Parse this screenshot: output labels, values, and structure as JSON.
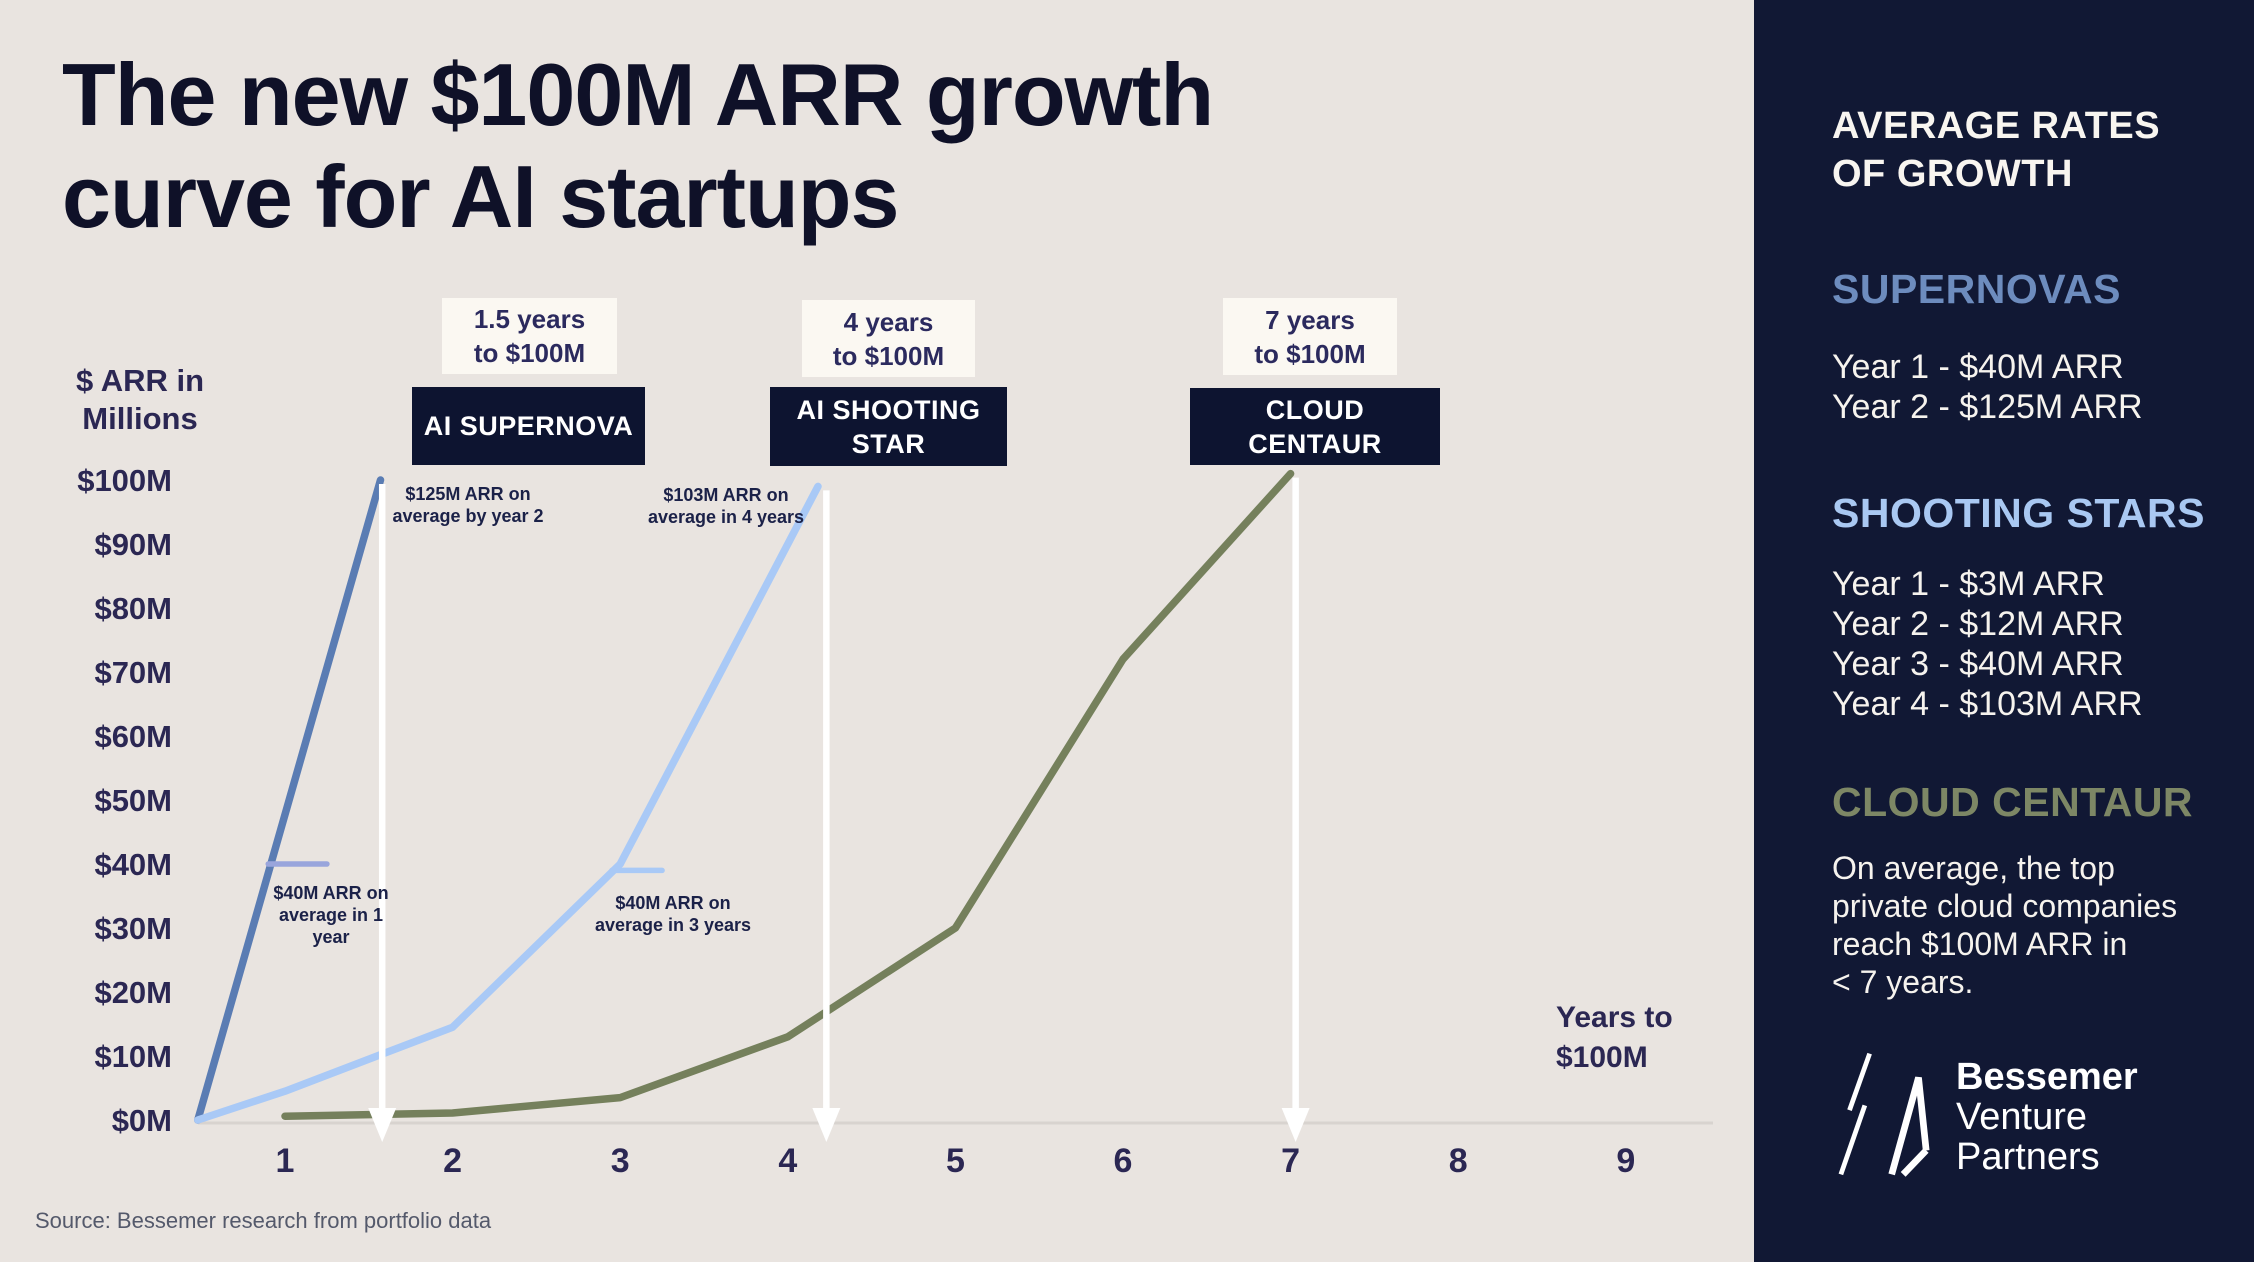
{
  "title": "The new $100M ARR growth\ncurve for AI startups",
  "source": "Source: Bessemer research from portfolio data",
  "axis": {
    "y_title": "$ ARR in\nMillions",
    "x_title": "Years to\n$100M"
  },
  "colors": {
    "background": "#e9e4e0",
    "panel_navy": "#111834",
    "box_navy": "#0d1430",
    "box_cream": "#fbf8f2",
    "arrow_white": "#ffffff"
  },
  "chart_data": {
    "type": "line",
    "title": "The new $100M ARR growth curve for AI startups",
    "xlabel": "Years to $100M",
    "ylabel": "$ ARR in Millions",
    "x_ticks": [
      1,
      2,
      3,
      4,
      5,
      6,
      7,
      8,
      9
    ],
    "xlim": [
      0.4,
      9.5
    ],
    "ylim": [
      0,
      105
    ],
    "grid": false,
    "y_ticks": [
      {
        "label": "$100M",
        "value": 100
      },
      {
        "label": "$90M",
        "value": 90
      },
      {
        "label": "$80M",
        "value": 80
      },
      {
        "label": "$70M",
        "value": 70
      },
      {
        "label": "$60M",
        "value": 60
      },
      {
        "label": "$50M",
        "value": 50
      },
      {
        "label": "$40M",
        "value": 40
      },
      {
        "label": "$30M",
        "value": 30
      },
      {
        "label": "$20M",
        "value": 20
      },
      {
        "label": "$10M",
        "value": 10
      },
      {
        "label": "$0M",
        "value": 0
      }
    ],
    "series": [
      {
        "name": "AI Supernova",
        "color": "#5a7cb3",
        "points": [
          [
            0.48,
            0
          ],
          [
            1.57,
            100
          ]
        ],
        "milestones": {
          "year_1_arr_m": 40,
          "year_2_arr_m": 125,
          "years_to_100m": 1.5
        }
      },
      {
        "name": "AI Shooting Star",
        "color": "#a9c9f6",
        "points": [
          [
            0.48,
            0
          ],
          [
            1,
            4.5
          ],
          [
            2,
            14.5
          ],
          [
            3,
            40
          ],
          [
            4.18,
            99
          ]
        ],
        "milestones": {
          "year_1_arr_m": 3,
          "year_2_arr_m": 12,
          "year_3_arr_m": 40,
          "year_4_arr_m": 103,
          "years_to_100m": 4
        }
      },
      {
        "name": "Cloud Centaur",
        "color": "#75805c",
        "points": [
          [
            1,
            0.6
          ],
          [
            2,
            1.1
          ],
          [
            3,
            3.5
          ],
          [
            4,
            13
          ],
          [
            5,
            30
          ],
          [
            6,
            72
          ],
          [
            7,
            101
          ]
        ],
        "milestones": {
          "years_to_100m": 7
        }
      }
    ],
    "milestone_ticks": [
      {
        "series": "AI Supernova",
        "value": 40,
        "from_year": 0.9,
        "to_year": 1.25,
        "color": "#99a5dc"
      },
      {
        "series": "AI Shooting Star",
        "value": 39,
        "from_year": 2.95,
        "to_year": 3.25,
        "color": "#a9c9f6"
      }
    ],
    "drop_arrows": [
      {
        "year": 1.58,
        "from_value": 100
      },
      {
        "year": 4.23,
        "from_value": 99
      },
      {
        "year": 7.03,
        "from_value": 101
      }
    ]
  },
  "callouts": {
    "supernova": {
      "time": "1.5 years\nto $100M",
      "name": "AI SUPERNOVA"
    },
    "shooting": {
      "time": "4 years\nto $100M",
      "name": "AI SHOOTING\nSTAR"
    },
    "centaur": {
      "time": "7 years\nto $100M",
      "name": "CLOUD\nCENTAUR"
    }
  },
  "annotations": {
    "supernova_year2": "$125M ARR on\naverage by year 2",
    "supernova_year1": "$40M ARR on\naverage in 1\nyear",
    "shooting_year4": "$103M ARR on\naverage in 4 years",
    "shooting_year3": "$40M ARR on\naverage in 3 years"
  },
  "sidebar": {
    "heading": "AVERAGE RATES\nOF GROWTH",
    "sections": [
      {
        "title": "SUPERNOVAS",
        "color": "#6d8cbe",
        "lines": [
          "Year 1 - $40M ARR",
          "Year 2 - $125M ARR"
        ]
      },
      {
        "title": "SHOOTING STARS",
        "color": "#a9c8f2",
        "lines": [
          "Year 1 - $3M ARR",
          "Year 2 - $12M ARR",
          "Year 3 - $40M ARR",
          "Year 4 - $103M ARR"
        ]
      },
      {
        "title": "CLOUD CENTAUR",
        "color": "#7d8765",
        "paragraph": "On average, the top\nprivate cloud companies\nreach $100M ARR in\n< 7 years."
      }
    ],
    "logo": {
      "line1": "Bessemer",
      "line2": "Venture",
      "line3": "Partners"
    }
  }
}
